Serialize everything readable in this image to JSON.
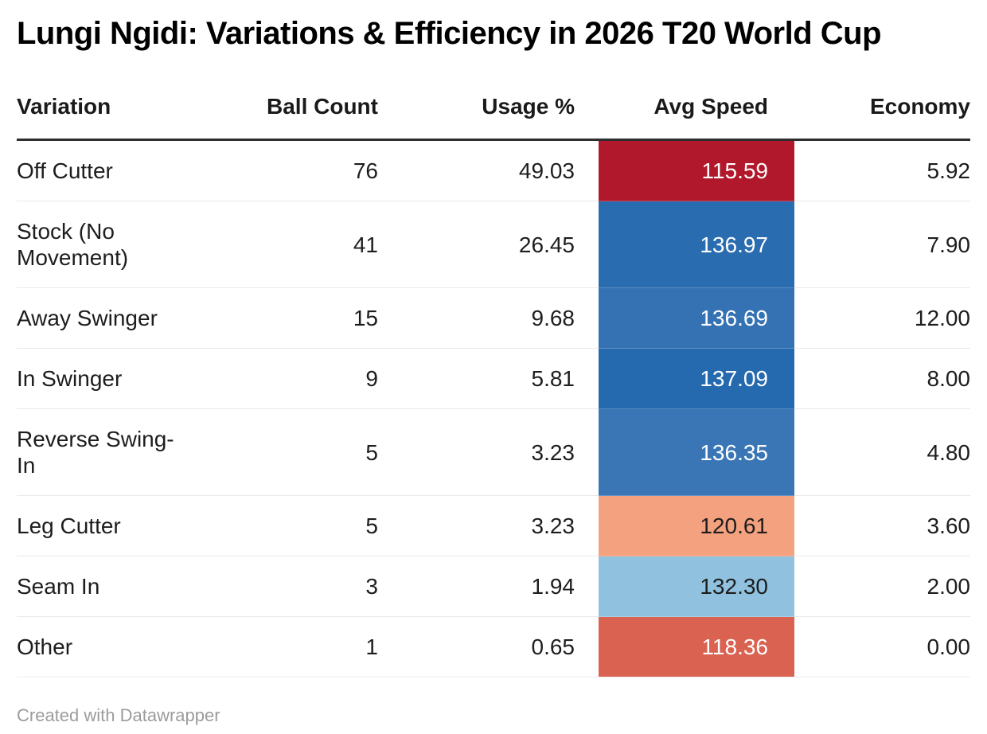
{
  "page": {
    "title": "Lungi Ngidi: Variations & Efficiency in 2026 T20 World Cup",
    "attribution": "Created with Datawrapper"
  },
  "table": {
    "columns": [
      "Variation",
      "Ball Count",
      "Usage %",
      "Avg Speed",
      "Economy"
    ],
    "rows": [
      {
        "variation": "Off Cutter",
        "ball_count": "76",
        "usage_pct": "49.03",
        "avg_speed": "115.59",
        "economy": "5.92",
        "speed_bg": "#b2182b",
        "speed_text_color": "#ffffff"
      },
      {
        "variation": "Stock (No Movement)",
        "ball_count": "41",
        "usage_pct": "26.45",
        "avg_speed": "136.97",
        "economy": "7.90",
        "speed_bg": "#2a6cb0",
        "speed_text_color": "#ffffff"
      },
      {
        "variation": "Away Swinger",
        "ball_count": "15",
        "usage_pct": "9.68",
        "avg_speed": "136.69",
        "economy": "12.00",
        "speed_bg": "#3572b4",
        "speed_text_color": "#ffffff"
      },
      {
        "variation": "In Swinger",
        "ball_count": "9",
        "usage_pct": "5.81",
        "avg_speed": "137.09",
        "economy": "8.00",
        "speed_bg": "#2569ae",
        "speed_text_color": "#ffffff"
      },
      {
        "variation": "Reverse Swing-In",
        "ball_count": "5",
        "usage_pct": "3.23",
        "avg_speed": "136.35",
        "economy": "4.80",
        "speed_bg": "#3a76b6",
        "speed_text_color": "#ffffff"
      },
      {
        "variation": "Leg Cutter",
        "ball_count": "5",
        "usage_pct": "3.23",
        "avg_speed": "120.61",
        "economy": "3.60",
        "speed_bg": "#f4a17f",
        "speed_text_color": "#1d1d1d"
      },
      {
        "variation": "Seam In",
        "ball_count": "3",
        "usage_pct": "1.94",
        "avg_speed": "132.30",
        "economy": "2.00",
        "speed_bg": "#90c2df",
        "speed_text_color": "#1d1d1d"
      },
      {
        "variation": "Other",
        "ball_count": "1",
        "usage_pct": "0.65",
        "avg_speed": "118.36",
        "economy": "0.00",
        "speed_bg": "#d96250",
        "speed_text_color": "#ffffff"
      }
    ]
  },
  "colors": {
    "header_rule": "#2e2e2e",
    "row_divider": "#e9e9e9",
    "footer_text": "#9c9c9c"
  },
  "chart_data": {
    "type": "table",
    "title": "Lungi Ngidi: Variations & Efficiency in 2026 T20 World Cup",
    "columns": [
      "Variation",
      "Ball Count",
      "Usage %",
      "Avg Speed",
      "Economy"
    ],
    "rows": [
      [
        "Off Cutter",
        76,
        49.03,
        115.59,
        5.92
      ],
      [
        "Stock (No Movement)",
        41,
        26.45,
        136.97,
        7.9
      ],
      [
        "Away Swinger",
        15,
        9.68,
        136.69,
        12.0
      ],
      [
        "In Swinger",
        9,
        5.81,
        137.09,
        8.0
      ],
      [
        "Reverse Swing-In",
        5,
        3.23,
        136.35,
        4.8
      ],
      [
        "Leg Cutter",
        5,
        3.23,
        120.61,
        3.6
      ],
      [
        "Seam In",
        3,
        1.94,
        132.3,
        2.0
      ],
      [
        "Other",
        1,
        0.65,
        118.36,
        0.0
      ]
    ],
    "heatmap_column": "Avg Speed",
    "heatmap_range": [
      115.59,
      137.09
    ],
    "heatmap_palette": "diverging red-blue (low speed = red, high speed = blue)",
    "footer": "Created with Datawrapper"
  }
}
